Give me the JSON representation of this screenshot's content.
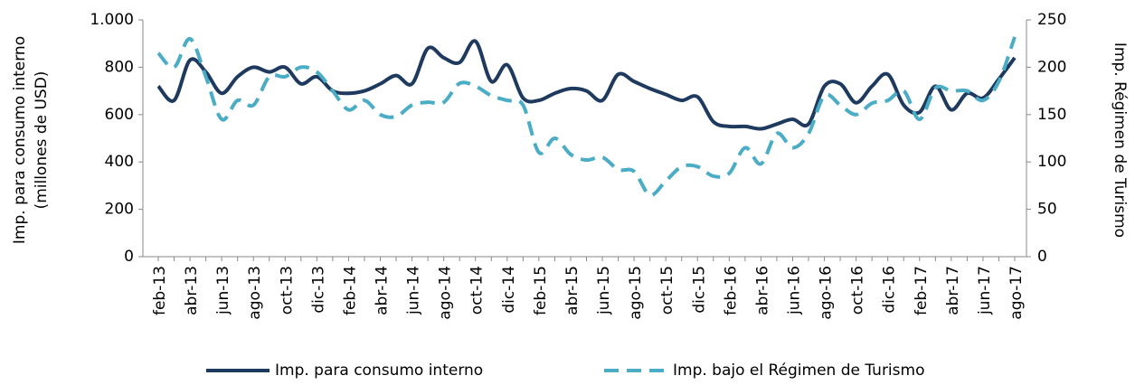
{
  "chart_data": {
    "type": "line",
    "y_label": [
      "Imp. para consumo interno",
      "(millones de USD)"
    ],
    "y2_label": "Imp. Régimen de Turismo",
    "categories": [
      "feb-13",
      null,
      "abr-13",
      null,
      "jun-13",
      null,
      "ago-13",
      null,
      "oct-13",
      null,
      "dic-13",
      null,
      "feb-14",
      null,
      "abr-14",
      null,
      "jun-14",
      null,
      "ago-14",
      null,
      "oct-14",
      null,
      "dic-14",
      null,
      "feb-15",
      null,
      "abr-15",
      null,
      "jun-15",
      null,
      "ago-15",
      null,
      "oct-15",
      null,
      "dic-15",
      null,
      "feb-16",
      null,
      "abr-16",
      null,
      "jun-16",
      null,
      "ago-16",
      null,
      "oct-16",
      null,
      "dic-16",
      null,
      "feb-17",
      null,
      "abr-17",
      null,
      "jun-17",
      null,
      "ago-17"
    ],
    "series": [
      {
        "name": "Imp. para consumo interno",
        "color": "#1f3a5f",
        "dash": false,
        "values": [
          720,
          660,
          830,
          780,
          690,
          760,
          800,
          780,
          800,
          730,
          760,
          700,
          690,
          700,
          730,
          765,
          730,
          880,
          840,
          820,
          910,
          740,
          810,
          670,
          660,
          690,
          710,
          700,
          660,
          770,
          740,
          710,
          685,
          660,
          675,
          570,
          550,
          550,
          540,
          560,
          580,
          560,
          720,
          730,
          650,
          720,
          770,
          640,
          610,
          720,
          620,
          690,
          670,
          750,
          840
        ]
      },
      {
        "name": "Imp. bajo el Régimen de Turismo",
        "color": "#4bacc6",
        "dash": true,
        "axis": "y2",
        "values": [
          215,
          200,
          230,
          190,
          145,
          165,
          160,
          190,
          190,
          200,
          195,
          175,
          155,
          165,
          150,
          148,
          160,
          163,
          163,
          183,
          180,
          170,
          165,
          160,
          110,
          125,
          108,
          102,
          105,
          92,
          90,
          65,
          80,
          95,
          95,
          85,
          88,
          115,
          98,
          130,
          115,
          130,
          170,
          160,
          150,
          162,
          165,
          175,
          145,
          178,
          175,
          175,
          165,
          185,
          232
        ]
      }
    ],
    "ylim": [
      0,
      1000
    ],
    "yticks": [
      0,
      200,
      400,
      600,
      800,
      {
        "value": 1000,
        "label": "1.000"
      }
    ],
    "y2lim": [
      0,
      250
    ],
    "y2ticks": [
      0,
      50,
      100,
      150,
      200,
      250
    ],
    "grid": false,
    "legend": "bottom"
  }
}
